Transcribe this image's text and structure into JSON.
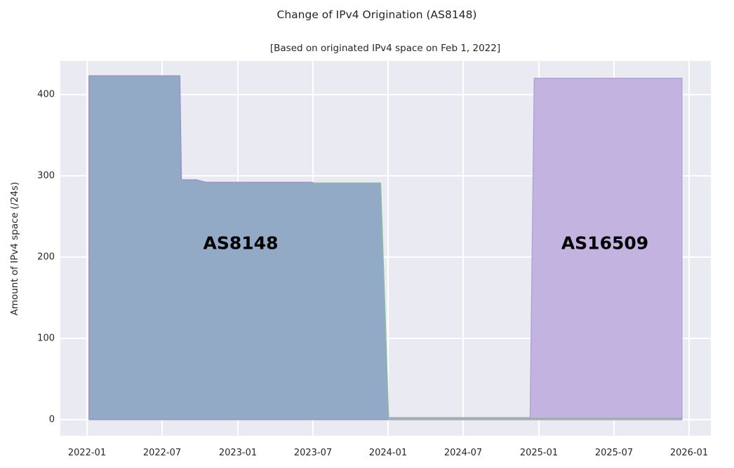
{
  "chart_data": {
    "type": "area",
    "title": "Change of IPv4 Origination (AS8148)",
    "subtitle": "[Based on originated IPv4 space on Feb 1, 2022]",
    "xlabel": "",
    "ylabel": "Amount of IPv4 space (/24s)",
    "x_tick_labels": [
      "2022-01",
      "2022-07",
      "2023-01",
      "2023-07",
      "2024-01",
      "2024-07",
      "2025-01",
      "2025-07",
      "2026-01"
    ],
    "y_tick_labels": [
      "0",
      "100",
      "200",
      "300",
      "400"
    ],
    "x_range": [
      "2021-11-01",
      "2026-02-20"
    ],
    "ylim": [
      -20,
      443
    ],
    "grid": true,
    "legend": "none (inline area labels)",
    "colors": {
      "figure_background": "#ffffff",
      "plot_background": "#eaeaf2",
      "gridline": "#ffffff",
      "as8148_fill": "#92aac6",
      "as8148_edge": "#9c92c6",
      "as16509_fill": "#c3b3e0",
      "as16509_edge": "#b2a2d9",
      "unlabeled_line": "#8fb8a0",
      "text": "#262626",
      "area_label_text": "#000000"
    },
    "series": [
      {
        "name": "AS8148",
        "label": "AS8148",
        "style": "area",
        "fill": "#92aac6",
        "edge": "#9c92c6",
        "points": [
          [
            "2022-01-06",
            423
          ],
          [
            "2022-08-13",
            423
          ],
          [
            "2022-08-17",
            295
          ],
          [
            "2022-09-24",
            295
          ],
          [
            "2022-10-16",
            292
          ],
          [
            "2023-06-30",
            292
          ],
          [
            "2023-07-04",
            291
          ],
          [
            "2023-12-13",
            291
          ],
          [
            "2024-01-02",
            1
          ],
          [
            "2025-12-14",
            1
          ]
        ]
      },
      {
        "name": "AS16509",
        "label": "AS16509",
        "style": "area",
        "fill": "#c3b3e0",
        "edge": "#b2a2d9",
        "points": [
          [
            "2024-01-02",
            2.5
          ],
          [
            "2024-12-11",
            2.5
          ],
          [
            "2024-12-21",
            420
          ],
          [
            "2025-12-14",
            420
          ]
        ]
      },
      {
        "name": "unlabeled-green",
        "label": "",
        "style": "line",
        "fill": "none",
        "edge": "#8fb8a0",
        "points": [
          [
            "2023-07-02",
            291
          ],
          [
            "2023-12-13",
            291
          ],
          [
            "2024-01-02",
            1.5
          ],
          [
            "2025-12-14",
            1.5
          ]
        ]
      }
    ]
  }
}
